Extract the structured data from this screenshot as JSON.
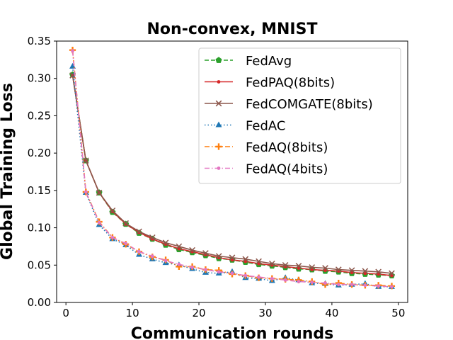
{
  "chart_data": {
    "type": "line",
    "title": "Non-convex, MNIST",
    "xlabel": "Communication rounds",
    "ylabel": "Global Training Loss",
    "xlim": [
      -1.4,
      51.4
    ],
    "ylim": [
      0.0,
      0.35
    ],
    "xticks": [
      0,
      10,
      20,
      30,
      40,
      50
    ],
    "xtick_labels": [
      "0",
      "10",
      "20",
      "30",
      "40",
      "50"
    ],
    "yticks": [
      0.0,
      0.05,
      0.1,
      0.15,
      0.2,
      0.25,
      0.3,
      0.35
    ],
    "ytick_labels": [
      "0.00",
      "0.05",
      "0.10",
      "0.15",
      "0.20",
      "0.25",
      "0.30",
      "0.35"
    ],
    "grid": false,
    "legend_position": "top-right",
    "x": [
      1,
      3,
      5,
      7,
      9,
      11,
      13,
      15,
      17,
      19,
      21,
      23,
      25,
      27,
      29,
      31,
      33,
      35,
      37,
      39,
      41,
      43,
      45,
      47,
      49
    ],
    "series": [
      {
        "name": "FedAvg",
        "color": "#2ca02c",
        "line_style": "dashed",
        "marker": "pentagon",
        "values": [
          0.305,
          0.19,
          0.147,
          0.121,
          0.105,
          0.093,
          0.085,
          0.077,
          0.071,
          0.067,
          0.063,
          0.059,
          0.057,
          0.054,
          0.051,
          0.049,
          0.047,
          0.045,
          0.044,
          0.042,
          0.041,
          0.039,
          0.038,
          0.037,
          0.036
        ]
      },
      {
        "name": "FedPAQ(8bits)",
        "color": "#d62728",
        "line_style": "solid",
        "marker": "point",
        "values": [
          0.304,
          0.19,
          0.147,
          0.122,
          0.105,
          0.094,
          0.085,
          0.078,
          0.072,
          0.068,
          0.064,
          0.06,
          0.057,
          0.055,
          0.052,
          0.05,
          0.048,
          0.046,
          0.044,
          0.043,
          0.042,
          0.04,
          0.039,
          0.038,
          0.036
        ]
      },
      {
        "name": "FedCOMGATE(8bits)",
        "color": "#8c564b",
        "line_style": "solid",
        "marker": "x",
        "values": [
          0.304,
          0.19,
          0.147,
          0.123,
          0.106,
          0.095,
          0.087,
          0.08,
          0.075,
          0.07,
          0.066,
          0.062,
          0.06,
          0.058,
          0.055,
          0.052,
          0.05,
          0.049,
          0.047,
          0.046,
          0.044,
          0.043,
          0.042,
          0.041,
          0.039
        ]
      },
      {
        "name": "FedAC",
        "color": "#1f77b4",
        "line_style": "dotted",
        "marker": "triangle",
        "values": [
          0.316,
          0.147,
          0.104,
          0.085,
          0.077,
          0.064,
          0.058,
          0.053,
          0.05,
          0.045,
          0.04,
          0.039,
          0.041,
          0.033,
          0.032,
          0.029,
          0.033,
          0.03,
          0.026,
          0.025,
          0.023,
          0.024,
          0.025,
          0.021,
          0.021
        ]
      },
      {
        "name": "FedAQ(8bits)",
        "color": "#ff7f0e",
        "line_style": "dashdot",
        "marker": "plus",
        "values": [
          0.338,
          0.148,
          0.108,
          0.087,
          0.078,
          0.068,
          0.061,
          0.057,
          0.048,
          0.048,
          0.044,
          0.043,
          0.038,
          0.036,
          0.033,
          0.032,
          0.031,
          0.03,
          0.028,
          0.024,
          0.026,
          0.024,
          0.023,
          0.023,
          0.022
        ]
      },
      {
        "name": "FedAQ(4bits)",
        "color": "#e377c2",
        "line_style": "dashdot",
        "marker": "point",
        "values": [
          0.337,
          0.148,
          0.107,
          0.087,
          0.079,
          0.068,
          0.062,
          0.056,
          0.051,
          0.047,
          0.044,
          0.041,
          0.039,
          0.036,
          0.034,
          0.032,
          0.03,
          0.028,
          0.027,
          0.026,
          0.024,
          0.024,
          0.023,
          0.022,
          0.021
        ]
      }
    ]
  }
}
